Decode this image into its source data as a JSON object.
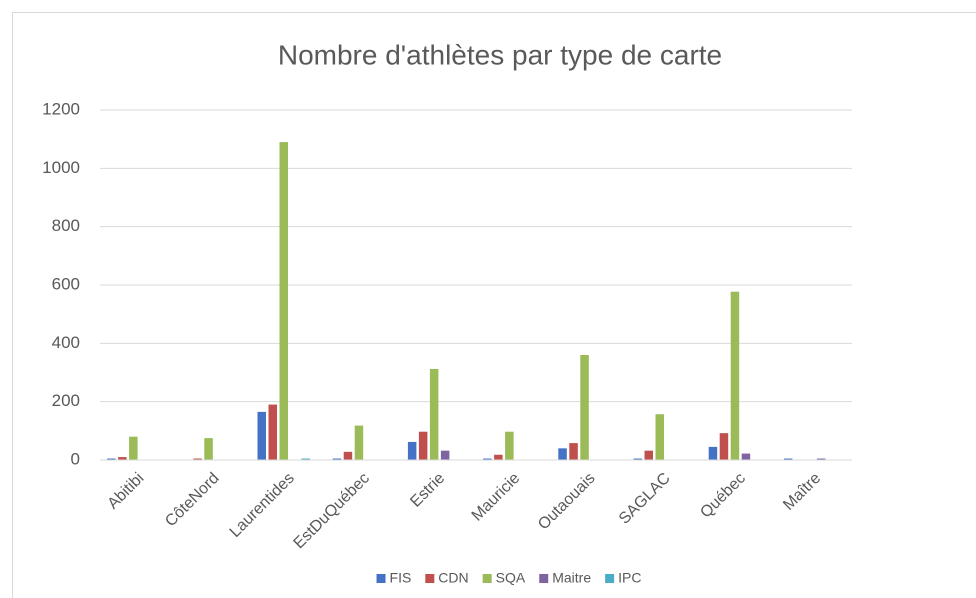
{
  "chart_data": {
    "type": "bar",
    "title": "Nombre d'athlètes par type de carte",
    "categories": [
      "Abitibi",
      "CôteNord",
      "Laurentides",
      "EstDuQuébec",
      "Estrie",
      "Mauricie",
      "Outaouais",
      "SAGLAC",
      "Québec",
      "Maître"
    ],
    "series": [
      {
        "name": "FIS",
        "color": "#4472c4",
        "values": [
          5,
          0,
          165,
          5,
          62,
          5,
          40,
          5,
          45,
          5
        ]
      },
      {
        "name": "CDN",
        "color": "#c0504d",
        "values": [
          10,
          5,
          190,
          28,
          97,
          18,
          58,
          32,
          92,
          0
        ]
      },
      {
        "name": "SQA",
        "color": "#9bbb59",
        "values": [
          80,
          75,
          1090,
          118,
          312,
          97,
          360,
          157,
          577,
          0
        ]
      },
      {
        "name": "Maitre",
        "color": "#8064a2",
        "values": [
          0,
          0,
          0,
          0,
          32,
          0,
          0,
          0,
          22,
          5
        ]
      },
      {
        "name": "IPC",
        "color": "#4bacc6",
        "values": [
          0,
          0,
          5,
          0,
          0,
          0,
          0,
          0,
          0,
          0
        ]
      }
    ],
    "ylim": [
      0,
      1200
    ],
    "yticks": [
      0,
      200,
      400,
      600,
      800,
      1000,
      1200
    ],
    "grid": true,
    "legend": "bottom"
  }
}
